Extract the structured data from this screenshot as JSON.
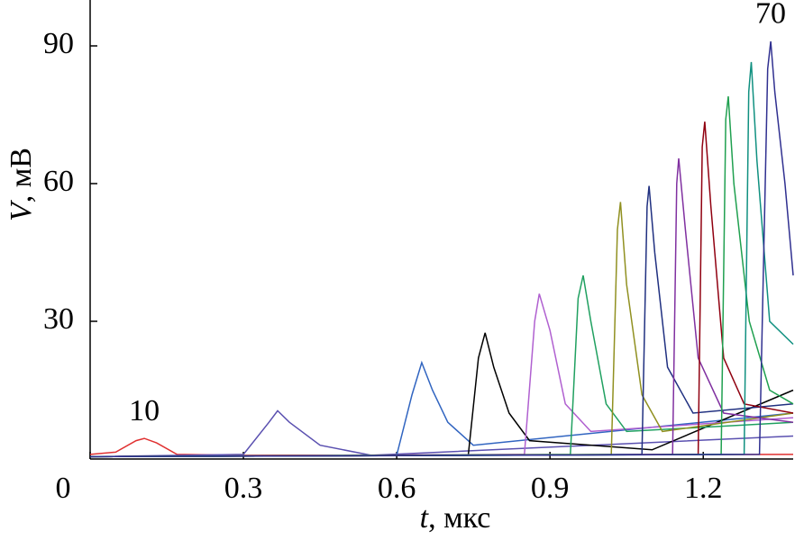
{
  "chart_data": {
    "type": "line",
    "xlabel": {
      "symbol": "t",
      "unit": ", мкс"
    },
    "ylabel": {
      "symbol": "V",
      "unit": ", мВ"
    },
    "annotations": [
      {
        "text": "10",
        "series": 0
      },
      {
        "text": "70",
        "series": 12
      }
    ],
    "xlim": [
      0,
      1.376
    ],
    "ylim": [
      0,
      100
    ],
    "xticks": [
      0,
      0.3,
      0.6,
      0.9,
      1.2
    ],
    "yticks": [
      30,
      60,
      90
    ],
    "series": [
      {
        "color": "#e03030",
        "x": [
          0,
          0.05,
          0.09,
          0.106,
          0.13,
          0.17,
          0.3,
          1.376
        ],
        "values": [
          1,
          1.5,
          4,
          4.5,
          3.5,
          1,
          0.8,
          1
        ]
      },
      {
        "color": "#5a50b0",
        "x": [
          0,
          0.3,
          0.35,
          0.367,
          0.39,
          0.45,
          0.55,
          1.376
        ],
        "values": [
          0.5,
          1,
          8,
          10.5,
          8,
          3,
          0.8,
          5
        ]
      },
      {
        "color": "#3064c0",
        "x": [
          0,
          0.6,
          0.63,
          0.649,
          0.67,
          0.7,
          0.75,
          1.376
        ],
        "values": [
          0.5,
          0.8,
          14,
          21,
          15,
          8,
          3,
          10
        ]
      },
      {
        "color": "#000000",
        "x": [
          0,
          0.74,
          0.76,
          0.773,
          0.79,
          0.82,
          0.86,
          1.1,
          1.376
        ],
        "values": [
          0.5,
          0.8,
          22,
          27.5,
          20,
          10,
          4,
          2,
          15
        ]
      },
      {
        "color": "#b060d0",
        "x": [
          0,
          0.85,
          0.87,
          0.879,
          0.9,
          0.93,
          0.98,
          1.376
        ],
        "values": [
          0.5,
          1,
          30,
          36,
          28,
          12,
          6,
          9
        ]
      },
      {
        "color": "#20a060",
        "x": [
          0,
          0.94,
          0.955,
          0.965,
          0.98,
          1.01,
          1.05,
          1.376
        ],
        "values": [
          0.5,
          1,
          35,
          40,
          30,
          12,
          6,
          8
        ]
      },
      {
        "color": "#909020",
        "x": [
          0,
          1.02,
          1.032,
          1.038,
          1.05,
          1.08,
          1.12,
          1.376
        ],
        "values": [
          0.5,
          1,
          50,
          56,
          38,
          14,
          6,
          10
        ]
      },
      {
        "color": "#203080",
        "x": [
          0,
          1.08,
          1.09,
          1.094,
          1.105,
          1.13,
          1.18,
          1.376
        ],
        "values": [
          0.5,
          1,
          55,
          59.5,
          45,
          20,
          10,
          12
        ]
      },
      {
        "color": "#8030a0",
        "x": [
          0,
          1.14,
          1.148,
          1.152,
          1.165,
          1.19,
          1.24,
          1.376
        ],
        "values": [
          0.5,
          1,
          60,
          65.5,
          50,
          22,
          10,
          8
        ]
      },
      {
        "color": "#900010",
        "x": [
          0,
          1.19,
          1.198,
          1.203,
          1.215,
          1.24,
          1.28,
          1.376
        ],
        "values": [
          0.5,
          1,
          68,
          73.5,
          55,
          22,
          12,
          10
        ]
      },
      {
        "color": "#20a050",
        "x": [
          0,
          1.235,
          1.244,
          1.249,
          1.26,
          1.29,
          1.33,
          1.376
        ],
        "values": [
          0.5,
          1,
          74,
          79,
          60,
          30,
          15,
          12
        ]
      },
      {
        "color": "#109080",
        "x": [
          0,
          1.28,
          1.289,
          1.294,
          1.305,
          1.33,
          1.376
        ],
        "values": [
          0.5,
          1,
          80,
          86.5,
          65,
          30,
          25
        ]
      },
      {
        "color": "#303090",
        "x": [
          0,
          1.31,
          1.326,
          1.332,
          1.34,
          1.36,
          1.376
        ],
        "values": [
          0.5,
          1,
          85,
          91,
          80,
          60,
          40
        ]
      }
    ]
  }
}
